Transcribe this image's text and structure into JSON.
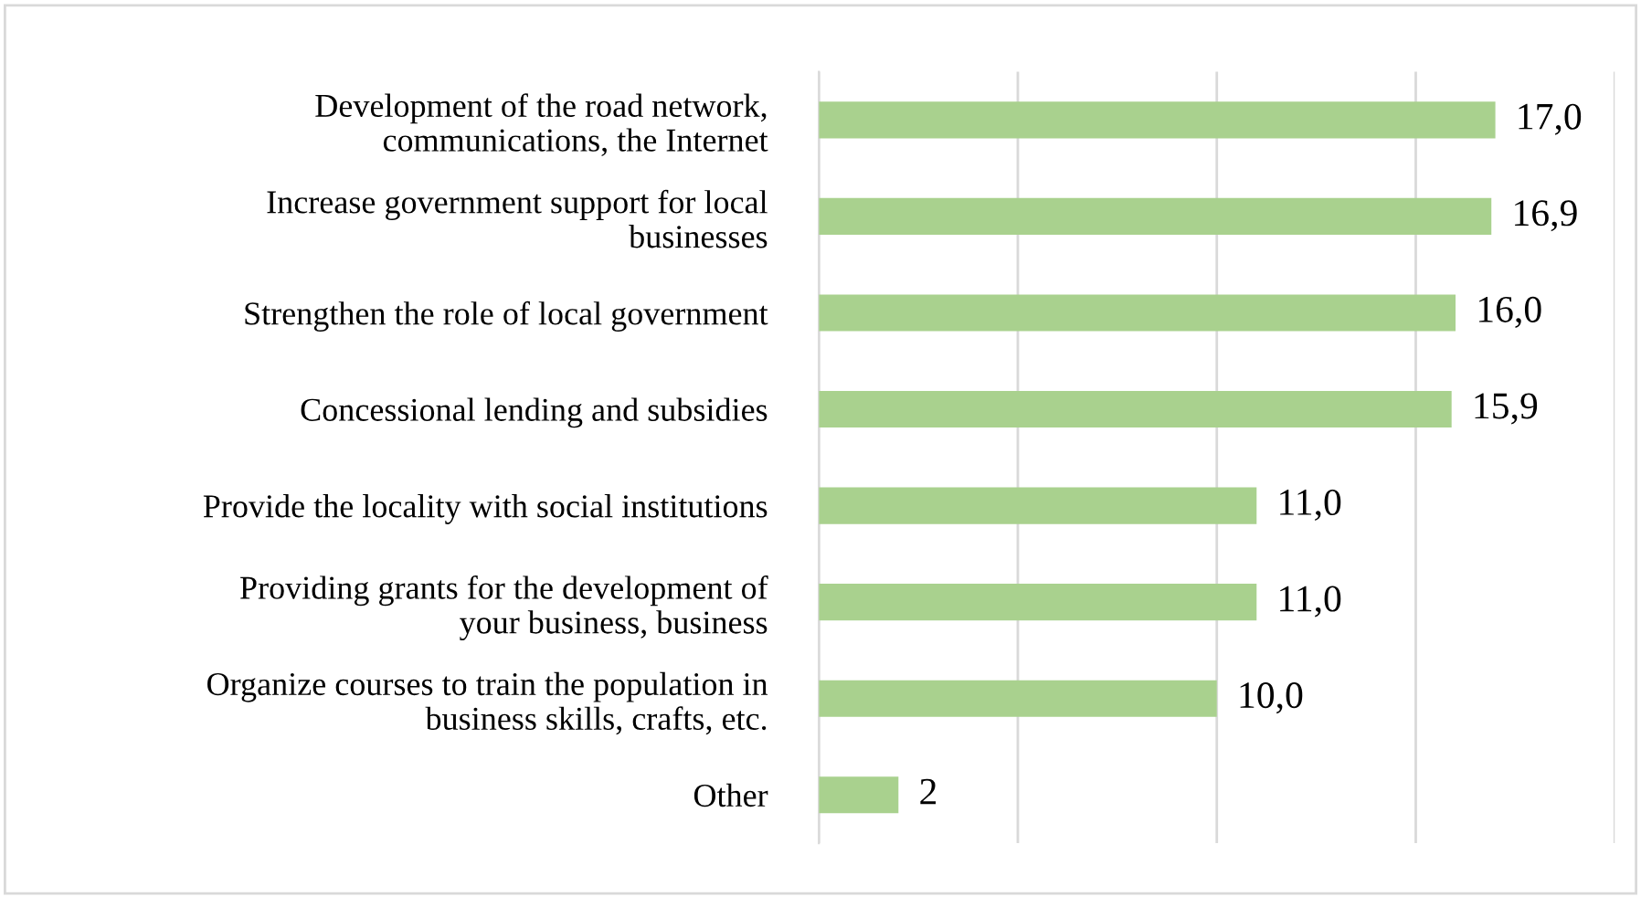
{
  "chart_data": {
    "type": "bar",
    "orientation": "horizontal",
    "categories": [
      "Development of the road network,\ncommunications, the Internet",
      "Increase government support for local\nbusinesses",
      "Strengthen the role of local government",
      "Concessional lending and subsidies",
      "Provide the locality with social institutions",
      "Providing grants for the development of\nyour business, business",
      "Organize courses to train the population in\nbusiness skills, crafts, etc.",
      "Other"
    ],
    "values": [
      17.0,
      16.9,
      16.0,
      15.9,
      11.0,
      11.0,
      10.0,
      2
    ],
    "value_labels": [
      "17,0",
      "16,9",
      "16,0",
      "15,9",
      "11,0",
      "11,0",
      "10,0",
      "2"
    ],
    "color": "#a9d18e",
    "xlim": [
      0,
      20
    ],
    "xticks": [
      {
        "value": 0,
        "label": null
      },
      {
        "value": 5,
        "label": null
      },
      {
        "value": 10,
        "label": null
      },
      {
        "value": 15,
        "label": null
      },
      {
        "value": 20,
        "label": null
      }
    ],
    "tick_labels": "y",
    "grid": "x",
    "legend": false
  }
}
